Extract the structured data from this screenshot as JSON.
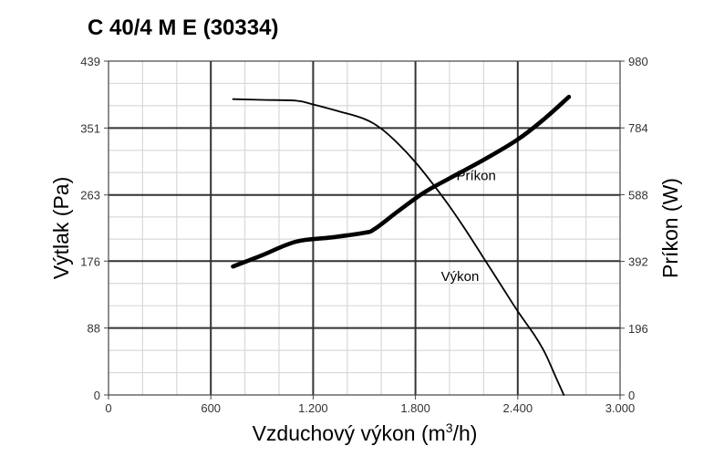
{
  "chart_data": {
    "type": "line",
    "title": "C 40/4 M E (30334)",
    "xlabel_prefix": "Vzduchový výkon (m",
    "xlabel_sup": "3",
    "xlabel_suffix": "/h)",
    "ylabel_left": "Výtlak (Pa)",
    "ylabel_right": "Príkon (W)",
    "xlim": [
      0,
      3000
    ],
    "ylim_left": [
      0,
      439
    ],
    "ylim_right": [
      0,
      980
    ],
    "x_ticks": [
      {
        "value": 0,
        "label": "0"
      },
      {
        "value": 600,
        "label": "600"
      },
      {
        "value": 1200,
        "label": "1.200"
      },
      {
        "value": 1800,
        "label": "1.800"
      },
      {
        "value": 2400,
        "label": "2.400"
      },
      {
        "value": 3000,
        "label": "3.000"
      }
    ],
    "y_ticks_left": [
      {
        "value": 0,
        "label": "0"
      },
      {
        "value": 88,
        "label": "88"
      },
      {
        "value": 176,
        "label": "176"
      },
      {
        "value": 263,
        "label": "263"
      },
      {
        "value": 351,
        "label": "351"
      },
      {
        "value": 439,
        "label": "439"
      }
    ],
    "y_ticks_right": [
      {
        "value": 0,
        "label": "0"
      },
      {
        "value": 196,
        "label": "196"
      },
      {
        "value": 392,
        "label": "392"
      },
      {
        "value": 588,
        "label": "588"
      },
      {
        "value": 784,
        "label": "784"
      },
      {
        "value": 980,
        "label": "980"
      }
    ],
    "grid": true,
    "series": [
      {
        "name": "Výkon",
        "axis": "left",
        "color": "#000000",
        "points": [
          [
            730,
            389
          ],
          [
            900,
            388
          ],
          [
            1100,
            387
          ],
          [
            1200,
            382
          ],
          [
            1350,
            373
          ],
          [
            1500,
            363
          ],
          [
            1600,
            350
          ],
          [
            1700,
            330
          ],
          [
            1800,
            306
          ],
          [
            1900,
            278
          ],
          [
            2000,
            248
          ],
          [
            2100,
            215
          ],
          [
            2200,
            180
          ],
          [
            2300,
            145
          ],
          [
            2400,
            110
          ],
          [
            2500,
            78
          ],
          [
            2560,
            55
          ],
          [
            2620,
            25
          ],
          [
            2670,
            0
          ]
        ]
      },
      {
        "name": "Príkon",
        "axis": "right",
        "color": "#000000",
        "points": [
          [
            730,
            377
          ],
          [
            900,
            410
          ],
          [
            1100,
            450
          ],
          [
            1300,
            462
          ],
          [
            1500,
            476
          ],
          [
            1560,
            487
          ],
          [
            1700,
            540
          ],
          [
            1850,
            594
          ],
          [
            2000,
            636
          ],
          [
            2200,
            690
          ],
          [
            2400,
            750
          ],
          [
            2550,
            808
          ],
          [
            2700,
            875
          ]
        ]
      }
    ],
    "annotations": [
      {
        "text": "Príkon",
        "x": 2040,
        "y_right": 630
      },
      {
        "text": "Výkon",
        "x": 1950,
        "y_left": 150
      }
    ]
  }
}
